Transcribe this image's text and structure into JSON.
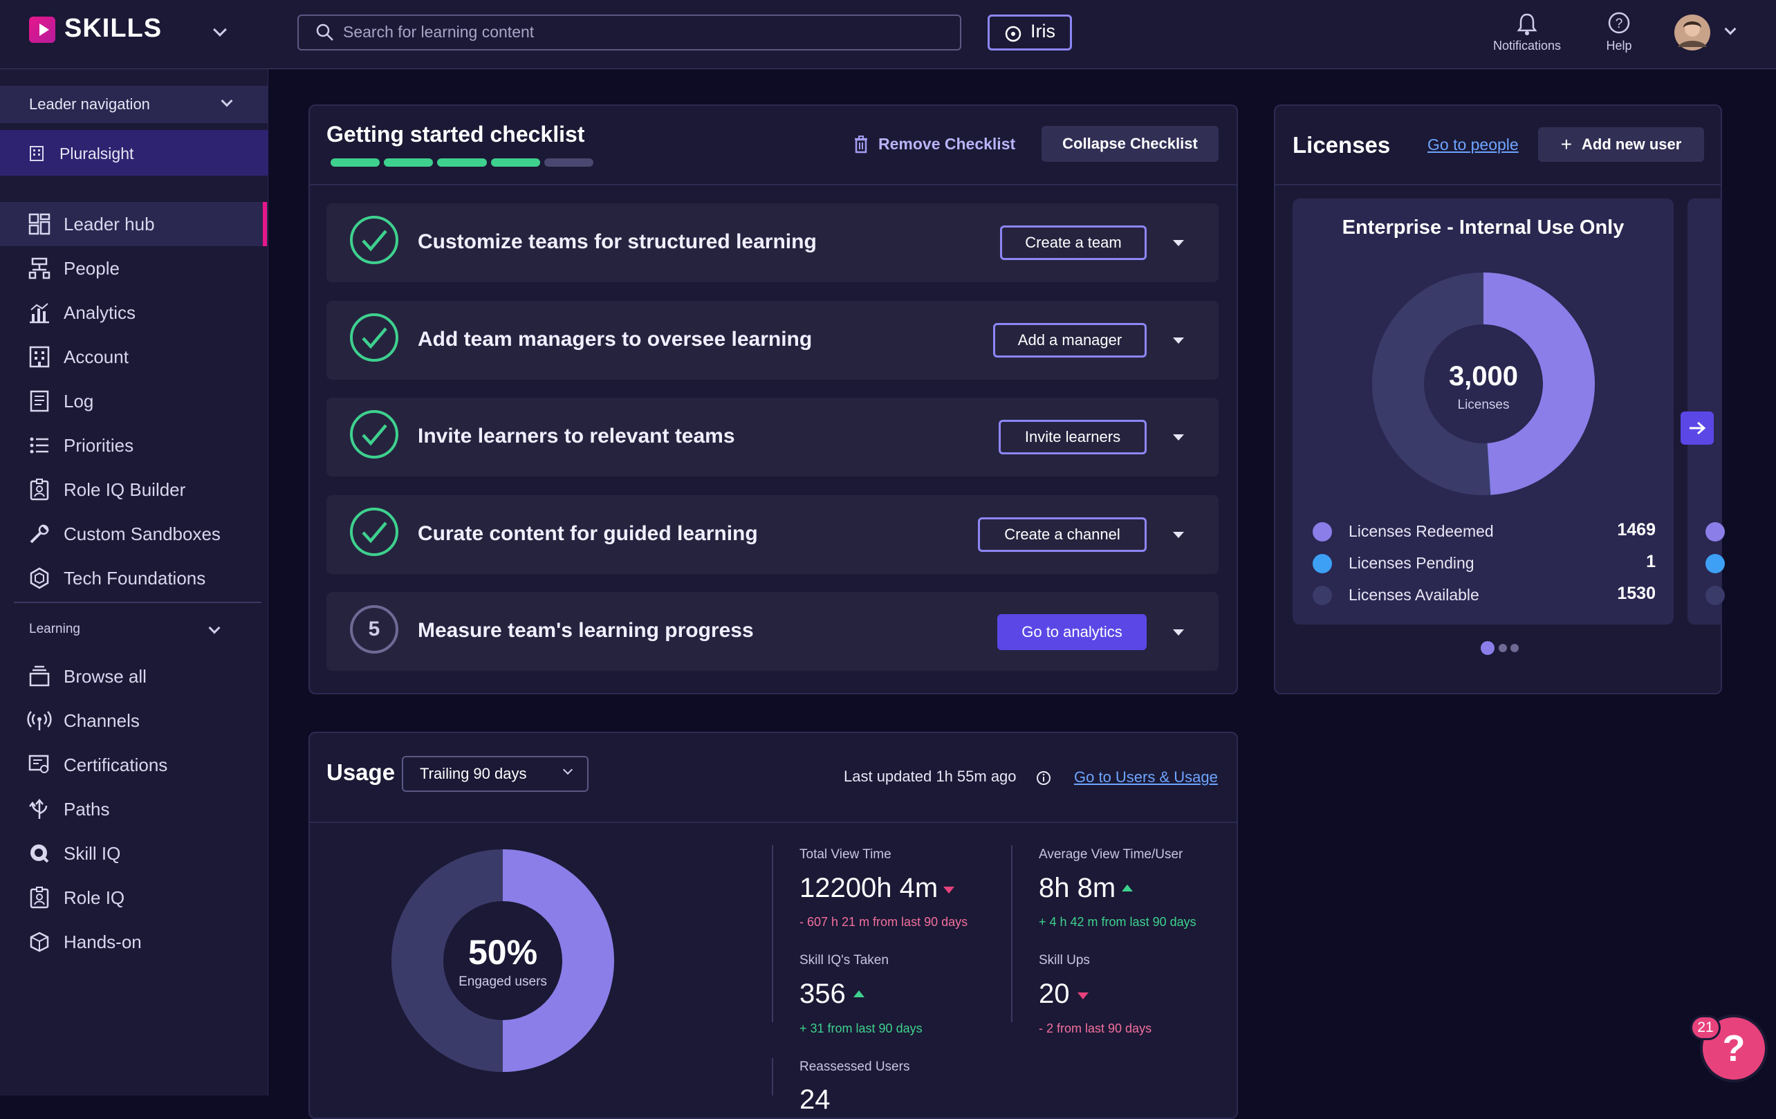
{
  "app": {
    "logo_text": "SKILLS"
  },
  "header": {
    "search_placeholder": "Search for learning content",
    "iris_label": "Iris",
    "notifications_label": "Notifications",
    "help_label": "Help"
  },
  "sidebar": {
    "leader_nav_label": "Leader navigation",
    "org_label": "Pluralsight",
    "items": [
      {
        "label": "Leader hub",
        "icon": "grid-icon"
      },
      {
        "label": "People",
        "icon": "org-chart-icon"
      },
      {
        "label": "Analytics",
        "icon": "bar-chart-icon"
      },
      {
        "label": "Account",
        "icon": "building-icon"
      },
      {
        "label": "Log",
        "icon": "document-icon"
      },
      {
        "label": "Priorities",
        "icon": "list-icon"
      },
      {
        "label": "Role IQ Builder",
        "icon": "badge-icon"
      },
      {
        "label": "Custom Sandboxes",
        "icon": "wrench-icon"
      },
      {
        "label": "Tech Foundations",
        "icon": "hexagon-icon"
      }
    ],
    "learning_label": "Learning",
    "learning_items": [
      {
        "label": "Browse all",
        "icon": "stack-icon"
      },
      {
        "label": "Channels",
        "icon": "broadcast-icon"
      },
      {
        "label": "Certifications",
        "icon": "certificate-icon"
      },
      {
        "label": "Paths",
        "icon": "paths-icon"
      },
      {
        "label": "Skill IQ",
        "icon": "skill-iq-icon"
      },
      {
        "label": "Role IQ",
        "icon": "badge-icon"
      },
      {
        "label": "Hands-on",
        "icon": "cube-icon"
      }
    ]
  },
  "checklist": {
    "title": "Getting started checklist",
    "progress_completed": 4,
    "progress_total": 5,
    "remove_label": "Remove Checklist",
    "collapse_label": "Collapse Checklist",
    "items": [
      {
        "title": "Customize teams for structured learning",
        "button": "Create a team",
        "done": true
      },
      {
        "title": "Add team managers to oversee learning",
        "button": "Add a manager",
        "done": true
      },
      {
        "title": "Invite learners to relevant teams",
        "button": "Invite learners",
        "done": true
      },
      {
        "title": "Curate content for guided learning",
        "button": "Create a channel",
        "done": true
      },
      {
        "title": "Measure team's learning progress",
        "button": "Go to analytics",
        "done": false,
        "step": "5"
      }
    ]
  },
  "licenses": {
    "title": "Licenses",
    "go_to_people": "Go to people",
    "add_user": "Add new user",
    "plan_title": "Enterprise - Internal Use Only",
    "total": "3,000",
    "total_label": "Licenses",
    "legend": [
      {
        "label": "Licenses Redeemed",
        "value": "1469",
        "color": "#8b7ee8"
      },
      {
        "label": "Licenses Pending",
        "value": "1",
        "color": "#3da0f5"
      },
      {
        "label": "Licenses Available",
        "value": "1530",
        "color": "#3b3b6a"
      }
    ],
    "page_dots": 3
  },
  "usage": {
    "title": "Usage",
    "period": "Trailing 90 days",
    "last_updated": "Last updated 1h 55m ago",
    "link": "Go to Users & Usage",
    "engaged_pct": "50%",
    "engaged_fraction": 0.5,
    "engaged_label": "Engaged users",
    "stats": [
      {
        "label": "Total View Time",
        "value": "12200h 4m",
        "trend": "down",
        "delta": "- 607 h 21 m from last 90 days"
      },
      {
        "label": "Average View Time/User",
        "value": "8h 8m",
        "trend": "up",
        "delta": "+ 4 h 42 m from last 90 days"
      },
      {
        "label": "Skill IQ's Taken",
        "value": "356",
        "trend": "up",
        "delta": "+ 31 from last 90 days"
      },
      {
        "label": "Skill Ups",
        "value": "20",
        "trend": "down",
        "delta": "- 2 from last 90 days"
      },
      {
        "label": "Reassessed Users",
        "value": "24",
        "trend": "",
        "delta": ""
      }
    ]
  },
  "help_badge": {
    "count": "21"
  }
}
